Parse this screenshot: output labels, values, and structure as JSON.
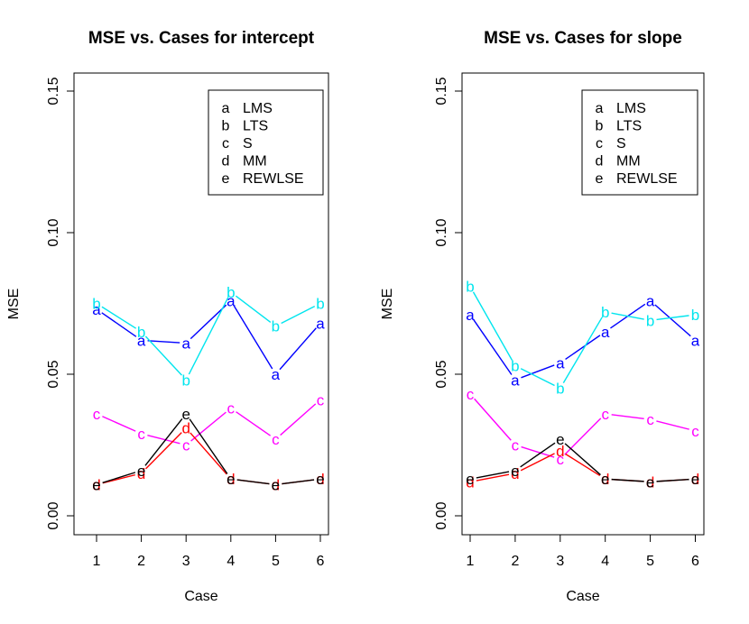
{
  "chart_data": [
    {
      "type": "line",
      "title": "MSE vs. Cases for intercept",
      "xlabel": "Case",
      "ylabel": "MSE",
      "x": [
        1,
        2,
        3,
        4,
        5,
        6
      ],
      "xticks": [
        "1",
        "2",
        "3",
        "4",
        "5",
        "6"
      ],
      "yticks": [
        "0.00",
        "0.05",
        "0.10",
        "0.15"
      ],
      "ylim": [
        0,
        0.15
      ],
      "legend_position": "top-right",
      "series": [
        {
          "name": "LMS",
          "symbol": "a",
          "color": "#0000ff",
          "values": [
            0.073,
            0.062,
            0.061,
            0.076,
            0.05,
            0.068
          ]
        },
        {
          "name": "LTS",
          "symbol": "b",
          "color": "#00e5ee",
          "values": [
            0.075,
            0.065,
            0.048,
            0.079,
            0.067,
            0.075
          ]
        },
        {
          "name": "S",
          "symbol": "c",
          "color": "#ff00ff",
          "values": [
            0.036,
            0.029,
            0.025,
            0.038,
            0.027,
            0.041
          ]
        },
        {
          "name": "MM",
          "symbol": "d",
          "color": "#ff0000",
          "values": [
            0.011,
            0.015,
            0.031,
            0.013,
            0.011,
            0.013
          ]
        },
        {
          "name": "REWLSE",
          "symbol": "e",
          "color": "#000000",
          "values": [
            0.011,
            0.016,
            0.036,
            0.013,
            0.011,
            0.013
          ]
        }
      ]
    },
    {
      "type": "line",
      "title": "MSE vs. Cases for slope",
      "xlabel": "Case",
      "ylabel": "MSE",
      "x": [
        1,
        2,
        3,
        4,
        5,
        6
      ],
      "xticks": [
        "1",
        "2",
        "3",
        "4",
        "5",
        "6"
      ],
      "yticks": [
        "0.00",
        "0.05",
        "0.10",
        "0.15"
      ],
      "ylim": [
        0,
        0.15
      ],
      "legend_position": "top-right",
      "series": [
        {
          "name": "LMS",
          "symbol": "a",
          "color": "#0000ff",
          "values": [
            0.071,
            0.048,
            0.054,
            0.065,
            0.076,
            0.062
          ]
        },
        {
          "name": "LTS",
          "symbol": "b",
          "color": "#00e5ee",
          "values": [
            0.081,
            0.053,
            0.045,
            0.072,
            0.069,
            0.071
          ]
        },
        {
          "name": "S",
          "symbol": "c",
          "color": "#ff00ff",
          "values": [
            0.043,
            0.025,
            0.02,
            0.036,
            0.034,
            0.03
          ]
        },
        {
          "name": "MM",
          "symbol": "d",
          "color": "#ff0000",
          "values": [
            0.012,
            0.015,
            0.023,
            0.013,
            0.012,
            0.013
          ]
        },
        {
          "name": "REWLSE",
          "symbol": "e",
          "color": "#000000",
          "values": [
            0.013,
            0.016,
            0.027,
            0.013,
            0.012,
            0.013
          ]
        }
      ]
    }
  ]
}
